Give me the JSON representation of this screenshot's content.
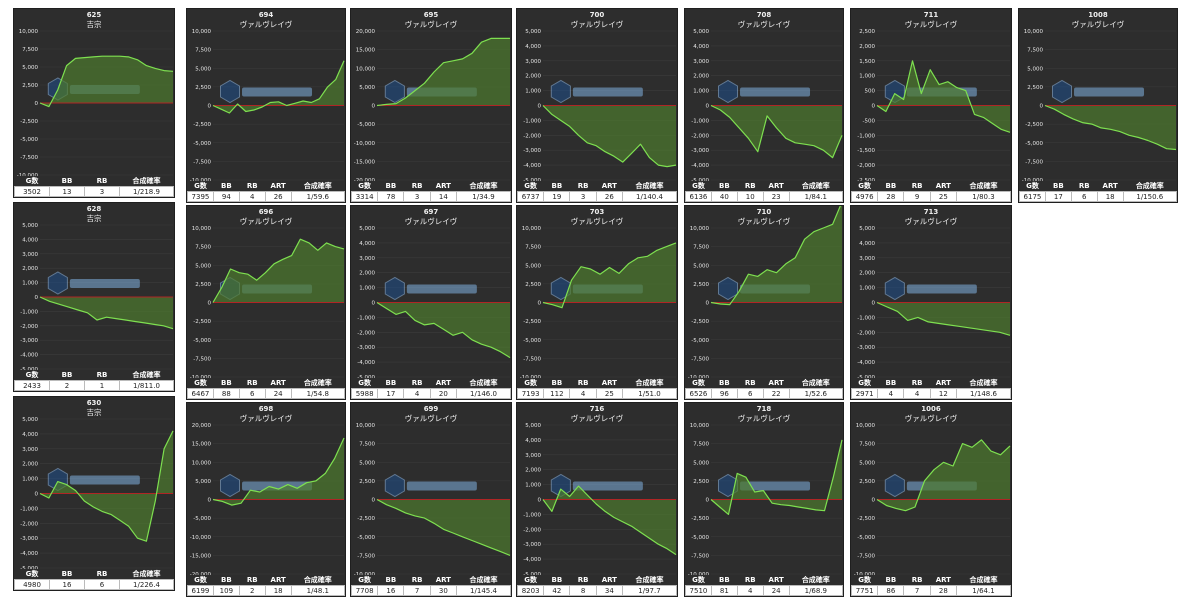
{
  "chart_data": [
    {
      "type": "area",
      "machine": "625",
      "name": "吉宗",
      "yticks": [
        10000,
        7500,
        5000,
        2500,
        0,
        -2500,
        -5000,
        -7500,
        -10000
      ],
      "ylim": [
        -10000,
        10000
      ],
      "values": [
        0,
        -500,
        1800,
        5200,
        6200,
        6300,
        6400,
        6500,
        6500,
        6500,
        6400,
        6000,
        5200,
        4800,
        4500,
        4400
      ],
      "stats": {
        "headers": [
          "G数",
          "BB",
          "RB",
          "合成確率"
        ],
        "values": [
          "3502",
          "13",
          "3",
          "1/218.9"
        ]
      }
    },
    {
      "type": "area",
      "machine": "694",
      "name": "ヴァルヴレイヴ",
      "yticks": [
        10000,
        7500,
        5000,
        2500,
        0,
        -2500,
        -5000,
        -7500,
        -10000
      ],
      "ylim": [
        -10000,
        10000
      ],
      "values": [
        0,
        -500,
        -1000,
        200,
        -800,
        -600,
        -200,
        400,
        500,
        0,
        300,
        600,
        400,
        900,
        2500,
        3500,
        6000
      ],
      "stats": {
        "headers": [
          "G数",
          "BB",
          "RB",
          "ART",
          "合成確率"
        ],
        "values": [
          "7395",
          "94",
          "4",
          "26",
          "1/59.6"
        ]
      }
    },
    {
      "type": "area",
      "machine": "695",
      "name": "ヴァルヴレイヴ",
      "yticks": [
        20000,
        15000,
        10000,
        5000,
        0,
        -5000,
        -10000,
        -15000,
        -20000
      ],
      "ylim": [
        -20000,
        20000
      ],
      "values": [
        0,
        300,
        500,
        2000,
        4000,
        6000,
        9000,
        11500,
        12000,
        12500,
        14000,
        17000,
        18000,
        18000,
        18000
      ],
      "stats": {
        "headers": [
          "G数",
          "BB",
          "RB",
          "ART",
          "合成確率"
        ],
        "values": [
          "3314",
          "78",
          "3",
          "14",
          "1/34.9"
        ]
      }
    },
    {
      "type": "area",
      "machine": "700",
      "name": "ヴァルヴレイヴ",
      "yticks": [
        5000,
        4000,
        3000,
        2000,
        1000,
        0,
        -1000,
        -2000,
        -3000,
        -4000,
        -5000
      ],
      "ylim": [
        -5000,
        5000
      ],
      "values": [
        0,
        -600,
        -1000,
        -1400,
        -2000,
        -2500,
        -2700,
        -3100,
        -3400,
        -3800,
        -3200,
        -2600,
        -3500,
        -4000,
        -4100,
        -4000
      ],
      "stats": {
        "headers": [
          "G数",
          "BB",
          "RB",
          "ART",
          "合成確率"
        ],
        "values": [
          "6737",
          "19",
          "3",
          "26",
          "1/140.4"
        ]
      }
    },
    {
      "type": "area",
      "machine": "708",
      "name": "ヴァルヴレイヴ",
      "yticks": [
        5000,
        4000,
        3000,
        2000,
        1000,
        0,
        -1000,
        -2000,
        -3000,
        -4000,
        -5000
      ],
      "ylim": [
        -5000,
        5000
      ],
      "values": [
        0,
        -300,
        -800,
        -1500,
        -2200,
        -3100,
        -700,
        -1500,
        -2200,
        -2500,
        -2600,
        -2700,
        -3000,
        -3500,
        -2000
      ],
      "stats": {
        "headers": [
          "G数",
          "BB",
          "RB",
          "ART",
          "合成確率"
        ],
        "values": [
          "6136",
          "40",
          "10",
          "23",
          "1/84.1"
        ]
      }
    },
    {
      "type": "area",
      "machine": "711",
      "name": "ヴァルヴレイヴ",
      "yticks": [
        2500,
        2000,
        1500,
        1000,
        500,
        0,
        -500,
        -1000,
        -1500,
        -2000,
        -2500
      ],
      "ylim": [
        -2500,
        2500
      ],
      "values": [
        0,
        -200,
        400,
        200,
        1500,
        400,
        1200,
        700,
        800,
        600,
        500,
        -300,
        -400,
        -600,
        -800,
        -900
      ],
      "stats": {
        "headers": [
          "G数",
          "BB",
          "RB",
          "ART",
          "合成確率"
        ],
        "values": [
          "4976",
          "28",
          "9",
          "25",
          "1/80.3"
        ]
      }
    },
    {
      "type": "area",
      "machine": "1008",
      "name": "ヴァルヴレイヴ",
      "yticks": [
        10000,
        7500,
        5000,
        2500,
        0,
        -2500,
        -5000,
        -7500,
        -10000
      ],
      "ylim": [
        -10000,
        10000
      ],
      "values": [
        0,
        -500,
        -1200,
        -1800,
        -2300,
        -2500,
        -3000,
        -3200,
        -3500,
        -4000,
        -4300,
        -4700,
        -5200,
        -5800,
        -5900
      ],
      "stats": {
        "headers": [
          "G数",
          "BB",
          "RB",
          "ART",
          "合成確率"
        ],
        "values": [
          "6175",
          "17",
          "6",
          "18",
          "1/150.6"
        ]
      }
    },
    {
      "type": "area",
      "machine": "628",
      "name": "吉宗",
      "yticks": [
        5000,
        4000,
        3000,
        2000,
        1000,
        0,
        -1000,
        -2000,
        -3000,
        -4000,
        -5000
      ],
      "ylim": [
        -5000,
        5000
      ],
      "values": [
        0,
        -300,
        -500,
        -700,
        -900,
        -1100,
        -1600,
        -1400,
        -1500,
        -1600,
        -1700,
        -1800,
        -1900,
        -2000,
        -2200
      ],
      "stats": {
        "headers": [
          "G数",
          "BB",
          "RB",
          "合成確率"
        ],
        "values": [
          "2433",
          "2",
          "1",
          "1/811.0"
        ]
      }
    },
    {
      "type": "area",
      "machine": "696",
      "name": "ヴァルヴレイヴ",
      "yticks": [
        10000,
        7500,
        5000,
        2500,
        0,
        -2500,
        -5000,
        -7500,
        -10000
      ],
      "ylim": [
        -10000,
        10000
      ],
      "values": [
        0,
        2000,
        4500,
        4000,
        3800,
        3000,
        4000,
        5200,
        5800,
        6300,
        8500,
        8000,
        7000,
        8000,
        7500,
        7200
      ],
      "stats": {
        "headers": [
          "G数",
          "BB",
          "RB",
          "ART",
          "合成確率"
        ],
        "values": [
          "6467",
          "88",
          "6",
          "24",
          "1/54.8"
        ]
      }
    },
    {
      "type": "area",
      "machine": "697",
      "name": "ヴァルヴレイヴ",
      "yticks": [
        5000,
        4000,
        3000,
        2000,
        1000,
        0,
        -1000,
        -2000,
        -3000,
        -4000,
        -5000
      ],
      "ylim": [
        -5000,
        5000
      ],
      "values": [
        0,
        -400,
        -800,
        -600,
        -1200,
        -1500,
        -1400,
        -1800,
        -2200,
        -2000,
        -2500,
        -2800,
        -3000,
        -3300,
        -3700
      ],
      "stats": {
        "headers": [
          "G数",
          "BB",
          "RB",
          "ART",
          "合成確率"
        ],
        "values": [
          "5988",
          "17",
          "4",
          "20",
          "1/146.0"
        ]
      }
    },
    {
      "type": "area",
      "machine": "703",
      "name": "ヴァルヴレイヴ",
      "yticks": [
        10000,
        7500,
        5000,
        2500,
        0,
        -2500,
        -5000,
        -7500,
        -10000
      ],
      "ylim": [
        -10000,
        10000
      ],
      "values": [
        0,
        -300,
        -700,
        3000,
        4800,
        4500,
        3800,
        4700,
        3900,
        5200,
        6000,
        6200,
        7000,
        7500,
        8000
      ],
      "stats": {
        "headers": [
          "G数",
          "BB",
          "RB",
          "ART",
          "合成確率"
        ],
        "values": [
          "7193",
          "112",
          "4",
          "25",
          "1/51.0"
        ]
      }
    },
    {
      "type": "area",
      "machine": "710",
      "name": "ヴァルヴレイヴ",
      "yticks": [
        10000,
        7500,
        5000,
        2500,
        0,
        -2500,
        -5000,
        -7500,
        -10000
      ],
      "ylim": [
        -10000,
        10000
      ],
      "values": [
        0,
        -200,
        -300,
        1500,
        3800,
        3500,
        4400,
        4000,
        5200,
        6000,
        8500,
        9500,
        10000,
        10500,
        13500
      ],
      "stats": {
        "headers": [
          "G数",
          "BB",
          "RB",
          "ART",
          "合成確率"
        ],
        "values": [
          "6526",
          "96",
          "6",
          "22",
          "1/52.6"
        ]
      }
    },
    {
      "type": "area",
      "machine": "713",
      "name": "ヴァルヴレイヴ",
      "yticks": [
        5000,
        4000,
        3000,
        2000,
        1000,
        0,
        -1000,
        -2000,
        -3000,
        -4000,
        -5000
      ],
      "ylim": [
        -5000,
        5000
      ],
      "values": [
        0,
        -300,
        -600,
        -1200,
        -1000,
        -1300,
        -1400,
        -1500,
        -1600,
        -1700,
        -1800,
        -1900,
        -2000,
        -2200
      ],
      "stats": {
        "headers": [
          "G数",
          "BB",
          "RB",
          "ART",
          "合成確率"
        ],
        "values": [
          "2971",
          "4",
          "4",
          "12",
          "1/148.6"
        ]
      }
    },
    {
      "type": "area",
      "machine": "630",
      "name": "吉宗",
      "yticks": [
        5000,
        4000,
        3000,
        2000,
        1000,
        0,
        -1000,
        -2000,
        -3000,
        -4000,
        -5000
      ],
      "ylim": [
        -5000,
        5000
      ],
      "values": [
        0,
        -300,
        800,
        600,
        200,
        -500,
        -900,
        -1200,
        -1400,
        -1800,
        -2200,
        -3000,
        -3200,
        -500,
        3000,
        4200
      ],
      "stats": {
        "headers": [
          "G数",
          "BB",
          "RB",
          "合成確率"
        ],
        "values": [
          "4980",
          "16",
          "6",
          "1/226.4"
        ]
      }
    },
    {
      "type": "area",
      "machine": "698",
      "name": "ヴァルヴレイヴ",
      "yticks": [
        20000,
        15000,
        10000,
        5000,
        0,
        -5000,
        -10000,
        -15000,
        -20000
      ],
      "ylim": [
        -20000,
        20000
      ],
      "values": [
        0,
        -500,
        -1500,
        -1000,
        2500,
        2000,
        3500,
        2800,
        4000,
        3000,
        4500,
        5000,
        7000,
        11000,
        16500
      ],
      "stats": {
        "headers": [
          "G数",
          "BB",
          "RB",
          "ART",
          "合成確率"
        ],
        "values": [
          "6199",
          "109",
          "2",
          "18",
          "1/48.1"
        ]
      }
    },
    {
      "type": "area",
      "machine": "699",
      "name": "ヴァルヴレイヴ",
      "yticks": [
        10000,
        7500,
        5000,
        2500,
        0,
        -2500,
        -5000,
        -7500,
        -10000
      ],
      "ylim": [
        -10000,
        10000
      ],
      "values": [
        0,
        -700,
        -1200,
        -1800,
        -2200,
        -2500,
        -3200,
        -4000,
        -4500,
        -5000,
        -5500,
        -6000,
        -6500,
        -7000,
        -7500
      ],
      "stats": {
        "headers": [
          "G数",
          "BB",
          "RB",
          "ART",
          "合成確率"
        ],
        "values": [
          "7708",
          "16",
          "7",
          "30",
          "1/145.4"
        ]
      }
    },
    {
      "type": "area",
      "machine": "716",
      "name": "ヴァルヴレイヴ",
      "yticks": [
        5000,
        4000,
        3000,
        2000,
        1000,
        0,
        -1000,
        -2000,
        -3000,
        -4000,
        -5000
      ],
      "ylim": [
        -5000,
        5000
      ],
      "values": [
        0,
        -800,
        700,
        200,
        900,
        300,
        -300,
        -800,
        -1200,
        -1500,
        -1800,
        -2200,
        -2600,
        -3000,
        -3300,
        -3700
      ],
      "stats": {
        "headers": [
          "G数",
          "BB",
          "RB",
          "ART",
          "合成確率"
        ],
        "values": [
          "8203",
          "42",
          "8",
          "34",
          "1/97.7"
        ]
      }
    },
    {
      "type": "area",
      "machine": "718",
      "name": "ヴァルヴレイヴ",
      "yticks": [
        10000,
        7500,
        5000,
        2500,
        0,
        -2500,
        -5000,
        -7500,
        -10000
      ],
      "ylim": [
        -10000,
        10000
      ],
      "values": [
        0,
        -1000,
        -2000,
        3500,
        3000,
        1000,
        1200,
        -500,
        -700,
        -800,
        -1000,
        -1200,
        -1400,
        -1500,
        3000,
        8000
      ],
      "stats": {
        "headers": [
          "G数",
          "BB",
          "RB",
          "ART",
          "合成確率"
        ],
        "values": [
          "7510",
          "81",
          "4",
          "24",
          "1/68.9"
        ]
      }
    },
    {
      "type": "area",
      "machine": "1006",
      "name": "ヴァルヴレイヴ",
      "yticks": [
        10000,
        7500,
        5000,
        2500,
        0,
        -2500,
        -5000,
        -7500,
        -10000
      ],
      "ylim": [
        -10000,
        10000
      ],
      "values": [
        0,
        -800,
        -1200,
        -1500,
        -1000,
        2500,
        4000,
        5000,
        4500,
        7500,
        7000,
        8000,
        6500,
        6000,
        7200
      ],
      "stats": {
        "headers": [
          "G数",
          "BB",
          "RB",
          "ART",
          "合成確率"
        ],
        "values": [
          "7751",
          "86",
          "7",
          "28",
          "1/64.1"
        ]
      }
    }
  ],
  "colors": {
    "line": "#7ee050",
    "fill": "#4d7a2e",
    "zero": "#b02525",
    "grid": "#3c3c3c",
    "panel": "#2d2d2d"
  }
}
